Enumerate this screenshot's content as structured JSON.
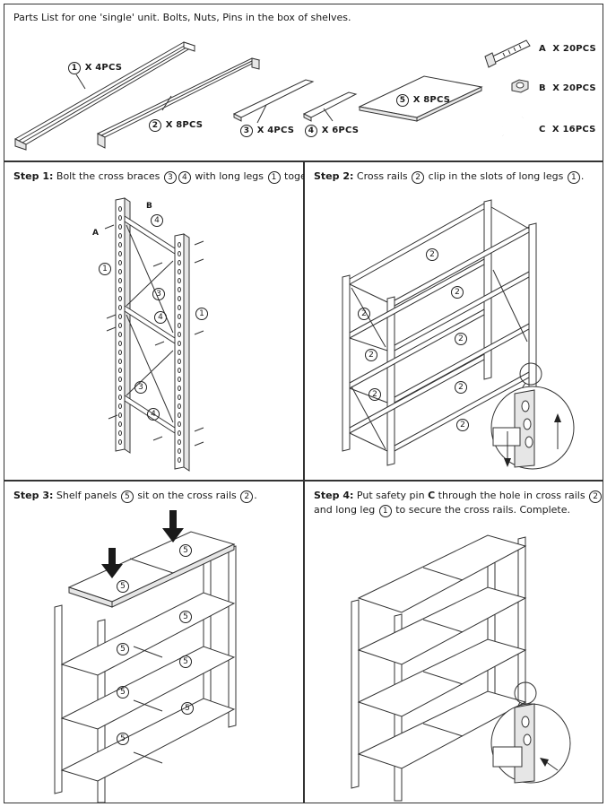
{
  "parts": {
    "heading": "Parts List for one 'single' unit. Bolts, Nuts, Pins in the box of shelves.",
    "items": [
      {
        "num": "1",
        "qty": "X 4PCS"
      },
      {
        "num": "2",
        "qty": "X 8PCS"
      },
      {
        "num": "3",
        "qty": "X 4PCS"
      },
      {
        "num": "4",
        "qty": "X 6PCS"
      },
      {
        "num": "5",
        "qty": "X 8PCS"
      }
    ],
    "hardware": [
      {
        "letter": "A",
        "qty": "X 20PCS"
      },
      {
        "letter": "B",
        "qty": "X 20PCS"
      },
      {
        "letter": "C",
        "qty": "X 16PCS"
      }
    ]
  },
  "steps": [
    {
      "label": "Step 1:",
      "pre": "Bolt the cross braces",
      "c1": "3",
      "c2": "4",
      "mid": "with long legs",
      "c3": "1",
      "post": "together."
    },
    {
      "label": "Step 2:",
      "pre": "Cross rails",
      "c1": "2",
      "mid": "clip in the slots of long legs",
      "c2": "1",
      "post": "."
    },
    {
      "label": "Step 3:",
      "pre": "Shelf panels",
      "c1": "5",
      "mid": "sit on the cross rails",
      "c2": "2",
      "post": "."
    },
    {
      "label": "Step 4:",
      "pre": "Put safety pin",
      "pin": "C",
      "mid": "through the hole in cross rails",
      "c1": "2",
      "line2_pre": "and long leg",
      "c2": "1",
      "line2_post": "to secure the cross rails. Complete."
    }
  ],
  "callouts": {
    "step1": [
      "B",
      "4",
      "A",
      "1",
      "3",
      "1",
      "4",
      "3",
      "4"
    ],
    "step2": [
      "2",
      "2",
      "2",
      "2",
      "2",
      "2",
      "2",
      "2"
    ],
    "step3": [
      "5",
      "5",
      "5",
      "5",
      "5",
      "5",
      "5",
      "5"
    ]
  }
}
